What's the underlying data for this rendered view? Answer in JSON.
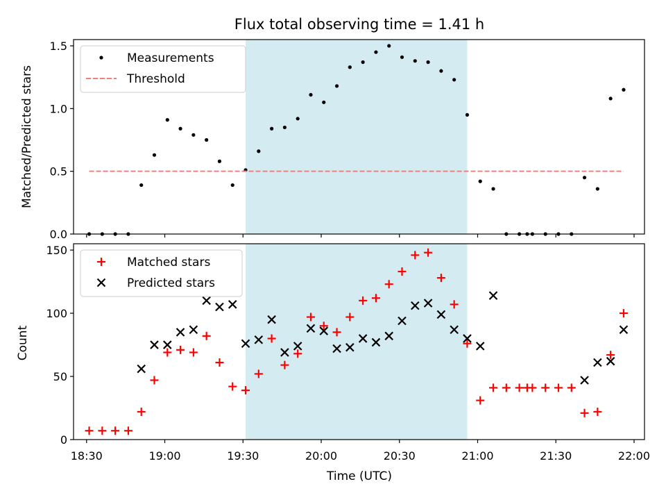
{
  "chart_data": [
    {
      "type": "scatter",
      "title": "Flux total observing time = 1.41 h",
      "ylabel": "Matched/Predicted stars",
      "xlabel": "",
      "xlim": [
        "18:25",
        "22:04"
      ],
      "ylim": [
        0,
        1.55
      ],
      "yticks": [
        0,
        0.5,
        1.0,
        1.5
      ],
      "ytick_labels": [
        "0.0",
        "0.5",
        "1.0",
        "1.5"
      ],
      "grid": false,
      "legend_position": "top-left",
      "shaded_interval": {
        "start": "19:31",
        "end": "20:56",
        "color": "#add8e6"
      },
      "series": [
        {
          "name": "Measurements",
          "kind": "points",
          "color": "#000000",
          "x": [
            "18:31",
            "18:36",
            "18:41",
            "18:46",
            "18:51",
            "18:56",
            "19:01",
            "19:06",
            "19:11",
            "19:16",
            "19:21",
            "19:26",
            "19:31",
            "19:36",
            "19:41",
            "19:46",
            "19:51",
            "19:56",
            "20:01",
            "20:06",
            "20:11",
            "20:16",
            "20:21",
            "20:26",
            "20:31",
            "20:36",
            "20:41",
            "20:46",
            "20:51",
            "20:56",
            "21:01",
            "21:06",
            "21:11",
            "21:16",
            "21:19",
            "21:21",
            "21:26",
            "21:31",
            "21:36",
            "21:41",
            "21:46",
            "21:51",
            "21:56"
          ],
          "y": [
            0,
            0,
            0,
            0,
            0.39,
            0.63,
            0.91,
            0.84,
            0.79,
            0.75,
            0.58,
            0.39,
            0.51,
            0.66,
            0.84,
            0.85,
            0.92,
            1.11,
            1.05,
            1.18,
            1.33,
            1.37,
            1.45,
            1.5,
            1.41,
            1.38,
            1.37,
            1.3,
            1.23,
            0.95,
            0.42,
            0.36,
            0,
            0,
            0,
            0,
            0,
            0,
            0,
            0.45,
            0.36,
            1.08,
            1.15
          ]
        },
        {
          "name": "Threshold",
          "kind": "dashed-line",
          "color": "#f08080",
          "x": [
            "18:31",
            "21:56"
          ],
          "y": [
            0.5,
            0.5
          ]
        }
      ]
    },
    {
      "type": "scatter",
      "title": "",
      "ylabel": "Count",
      "xlabel": "Time (UTC)",
      "xlim": [
        "18:25",
        "22:04"
      ],
      "ylim": [
        0,
        155
      ],
      "yticks": [
        0,
        50,
        100,
        150
      ],
      "ytick_labels": [
        "0",
        "50",
        "100",
        "150"
      ],
      "xticks": [
        "18:30",
        "19:00",
        "19:30",
        "20:00",
        "20:30",
        "21:00",
        "21:30",
        "22:00"
      ],
      "grid": false,
      "legend_position": "top-left",
      "shaded_interval": {
        "start": "19:31",
        "end": "20:56",
        "color": "#add8e6"
      },
      "series": [
        {
          "name": "Matched stars",
          "marker": "plus",
          "color": "#ff0000",
          "x": [
            "18:31",
            "18:36",
            "18:41",
            "18:46",
            "18:51",
            "18:56",
            "19:01",
            "19:06",
            "19:11",
            "19:16",
            "19:21",
            "19:26",
            "19:31",
            "19:36",
            "19:41",
            "19:46",
            "19:51",
            "19:56",
            "20:01",
            "20:06",
            "20:11",
            "20:16",
            "20:21",
            "20:26",
            "20:31",
            "20:36",
            "20:41",
            "20:46",
            "20:51",
            "20:56",
            "21:01",
            "21:06",
            "21:11",
            "21:16",
            "21:19",
            "21:21",
            "21:26",
            "21:31",
            "21:36",
            "21:41",
            "21:46",
            "21:51",
            "21:56"
          ],
          "y": [
            7,
            7,
            7,
            7,
            22,
            47,
            69,
            71,
            69,
            82,
            61,
            42,
            39,
            52,
            80,
            59,
            68,
            97,
            90,
            85,
            97,
            110,
            112,
            123,
            133,
            146,
            148,
            128,
            107,
            76,
            31,
            41,
            41,
            41,
            41,
            41,
            41,
            41,
            41,
            21,
            22,
            67,
            100
          ]
        },
        {
          "name": "Predicted stars",
          "marker": "x",
          "color": "#000000",
          "x": [
            "18:51",
            "18:56",
            "19:01",
            "19:06",
            "19:11",
            "19:16",
            "19:21",
            "19:26",
            "19:31",
            "19:36",
            "19:41",
            "19:46",
            "19:51",
            "19:56",
            "20:01",
            "20:06",
            "20:11",
            "20:16",
            "20:21",
            "20:26",
            "20:31",
            "20:36",
            "20:41",
            "20:46",
            "20:51",
            "20:56",
            "21:01",
            "21:06",
            "21:41",
            "21:46",
            "21:51",
            "21:56"
          ],
          "y": [
            56,
            75,
            75,
            85,
            87,
            110,
            105,
            107,
            76,
            79,
            95,
            69,
            74,
            88,
            86,
            72,
            73,
            80,
            77,
            82,
            94,
            106,
            108,
            99,
            87,
            80,
            74,
            114,
            47,
            61,
            62,
            87
          ]
        }
      ]
    }
  ]
}
